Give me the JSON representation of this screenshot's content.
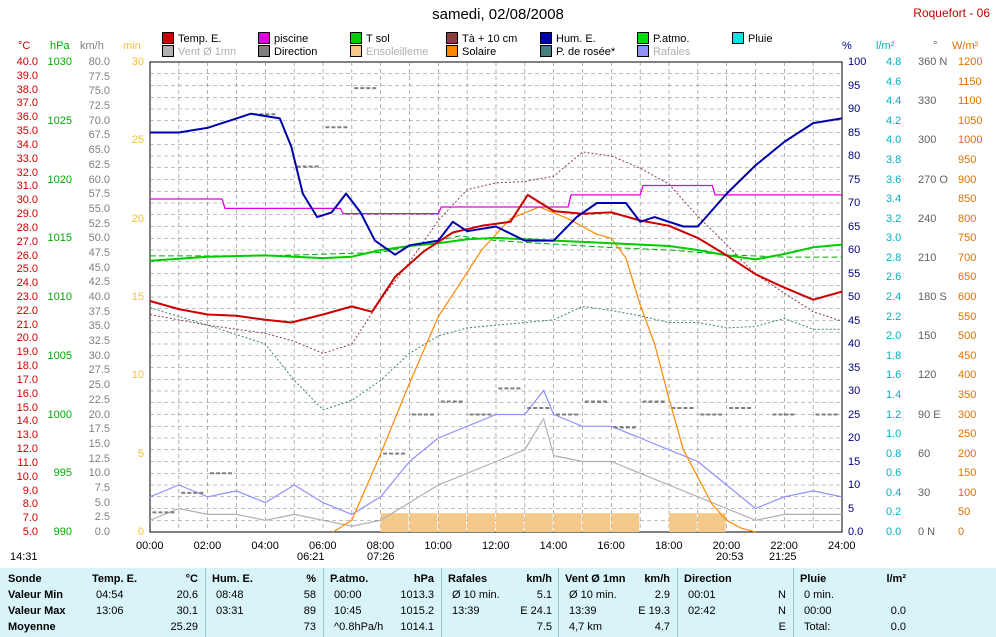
{
  "title": "samedi, 02/08/2008",
  "station": "Roquefort - 06",
  "legend": [
    {
      "label": "Temp. E.",
      "color": "#cc0000",
      "dim": false
    },
    {
      "label": "piscine",
      "color": "#e000e0",
      "dim": false
    },
    {
      "label": "T sol",
      "color": "#00cc00",
      "dim": false
    },
    {
      "label": "Tà + 10 cm",
      "color": "#8b4040",
      "dim": false
    },
    {
      "label": "Hum. E.",
      "color": "#0000aa",
      "dim": false
    },
    {
      "label": "P.atmo.",
      "color": "#00dd00",
      "dim": false
    },
    {
      "label": "Pluie",
      "color": "#00e5e5",
      "dim": false
    },
    {
      "label": "Vent Ø 1mn",
      "color": "#b0b0b0",
      "dim": true
    },
    {
      "label": "Direction",
      "color": "#808080",
      "dim": false
    },
    {
      "label": "Ensoleilleme",
      "color": "#f5c98a",
      "dim": true
    },
    {
      "label": "Solaire",
      "color": "#ff8800",
      "dim": false
    },
    {
      "label": "P. de rosée*",
      "color": "#408080",
      "dim": false
    },
    {
      "label": "Rafales",
      "color": "#9090ff",
      "dim": true
    }
  ],
  "axes": {
    "temp": {
      "unit": "°C",
      "ticks": [
        "40.0",
        "39.0",
        "38.0",
        "37.0",
        "36.0",
        "35.0",
        "34.0",
        "33.0",
        "32.0",
        "31.0",
        "30.0",
        "29.0",
        "28.0",
        "27.0",
        "26.0",
        "25.0",
        "24.0",
        "23.0",
        "22.0",
        "21.0",
        "20.0",
        "19.0",
        "18.0",
        "17.0",
        "16.0",
        "15.0",
        "14.0",
        "13.0",
        "12.0",
        "11.0",
        "10.0",
        "9.0",
        "8.0",
        "7.0",
        "5.0"
      ],
      "color": "#cc0000"
    },
    "press": {
      "unit": "hPa",
      "ticks": [
        "1030",
        "1025",
        "1020",
        "1015",
        "1010",
        "1005",
        "1000",
        "995",
        "990"
      ],
      "color": "#00aa00"
    },
    "wind": {
      "unit": "km/h",
      "ticks": [
        "80.0",
        "77.5",
        "75.0",
        "72.5",
        "70.0",
        "67.5",
        "65.0",
        "62.5",
        "60.0",
        "57.5",
        "55.0",
        "52.5",
        "50.0",
        "47.5",
        "45.0",
        "42.5",
        "40.0",
        "37.5",
        "35.0",
        "32.5",
        "30.0",
        "27.5",
        "25.0",
        "22.5",
        "20.0",
        "17.5",
        "15.0",
        "12.5",
        "10.0",
        "7.5",
        "5.0",
        "2.5",
        "0.0"
      ],
      "color": "#808080"
    },
    "min": {
      "unit": "min",
      "ticks": [
        "30",
        "25",
        "20",
        "15",
        "10",
        "5",
        "0"
      ],
      "color": "#f0c040"
    },
    "hum": {
      "unit": "%",
      "ticks": [
        "100",
        "95",
        "90",
        "85",
        "80",
        "75",
        "70",
        "65",
        "60",
        "55",
        "50",
        "45",
        "40",
        "35",
        "30",
        "25",
        "20",
        "15",
        "10",
        "5",
        "0.0"
      ],
      "color": "#000080"
    },
    "rain": {
      "unit": "l/m²",
      "ticks": [
        "4.8",
        "4.6",
        "4.4",
        "4.2",
        "4.0",
        "3.8",
        "3.6",
        "3.4",
        "3.2",
        "3.0",
        "2.8",
        "2.6",
        "2.4",
        "2.2",
        "2.0",
        "1.8",
        "1.6",
        "1.4",
        "1.2",
        "1.0",
        "0.8",
        "0.6",
        "0.4",
        "0.2",
        "0.0"
      ],
      "color": "#00b0c0"
    },
    "dir": {
      "unit": "°",
      "ticks": [
        "360 N",
        "330",
        "300",
        "270 O",
        "240",
        "210",
        "180 S",
        "150",
        "120",
        "90 E",
        "60",
        "30",
        "0 N"
      ],
      "color": "#606060"
    },
    "solar": {
      "unit": "W/m²",
      "ticks": [
        "1200",
        "1150",
        "1100",
        "1050",
        "1000",
        "950",
        "900",
        "850",
        "800",
        "750",
        "700",
        "650",
        "600",
        "550",
        "500",
        "450",
        "400",
        "350",
        "300",
        "250",
        "200",
        "150",
        "100",
        "50",
        "0"
      ],
      "color": "#e07000"
    }
  },
  "xaxis": {
    "ticks": [
      "00:00",
      "02:00",
      "04:00",
      "06:00",
      "08:00",
      "10:00",
      "12:00",
      "14:00",
      "16:00",
      "18:00",
      "20:00",
      "22:00",
      "24:00"
    ]
  },
  "sun_events": {
    "left": "14:31",
    "sunrise": "06:21",
    "sunrise2": "07:26",
    "sunset": "20:53",
    "sunset2": "21:25"
  },
  "chart_data": {
    "type": "line",
    "x_unit": "hours",
    "series": [
      {
        "name": "Temp. E.",
        "unit": "°C",
        "x": [
          0,
          1,
          2,
          3,
          4,
          4.9,
          6,
          7,
          7.7,
          8.5,
          9.5,
          10.5,
          11.5,
          12.5,
          13.1,
          14,
          15,
          16,
          17,
          18,
          19,
          20,
          21,
          22,
          23,
          24
        ],
        "values": [
          22.2,
          21.6,
          21.2,
          21.1,
          20.8,
          20.6,
          21.2,
          21.8,
          21.4,
          24.0,
          25.9,
          27.3,
          27.8,
          28.1,
          30.1,
          28.9,
          28.7,
          28.8,
          28.2,
          27.8,
          26.9,
          25.6,
          24.2,
          23.2,
          22.3,
          22.9
        ]
      },
      {
        "name": "piscine",
        "unit": "°C",
        "x": [
          0,
          2.5,
          2.6,
          6.6,
          6.7,
          10,
          10.1,
          14.5,
          14.6,
          17,
          17.1,
          19.5,
          19.6,
          24
        ],
        "values": [
          29.8,
          29.8,
          29.1,
          29.1,
          28.7,
          28.7,
          29.2,
          29.2,
          30.1,
          30.1,
          30.8,
          30.8,
          30.1,
          30.1
        ]
      },
      {
        "name": "T sol",
        "unit": "°C",
        "x": [
          0,
          2,
          4,
          6,
          7,
          8,
          9,
          10,
          11,
          12,
          13,
          14,
          15,
          16,
          17,
          18,
          19,
          20,
          21,
          22,
          23,
          24
        ],
        "values": [
          25.2,
          25.5,
          25.6,
          25.4,
          25.5,
          26.0,
          26.3,
          26.5,
          26.8,
          26.9,
          26.8,
          26.7,
          26.6,
          26.5,
          26.4,
          26.3,
          26.0,
          25.6,
          25.3,
          25.7,
          26.2,
          26.4
        ]
      },
      {
        "name": "Tà + 10 cm",
        "unit": "°C",
        "x": [
          0,
          2,
          4,
          5,
          6,
          7,
          8,
          9,
          10,
          11,
          12,
          13,
          14,
          15,
          16,
          17,
          18,
          19,
          20,
          21,
          22,
          23,
          24
        ],
        "values": [
          21.2,
          20.4,
          19.8,
          19.2,
          18.3,
          19.0,
          22.3,
          25.1,
          28.2,
          30.5,
          31.0,
          31.1,
          31.5,
          33.3,
          33.0,
          32.1,
          30.9,
          28.5,
          26.4,
          24.2,
          22.8,
          21.4,
          20.7
        ]
      },
      {
        "name": "P. de rosée*",
        "unit": "°C",
        "x": [
          0,
          2,
          4,
          5,
          6,
          7,
          8,
          9,
          10,
          11,
          12,
          13,
          14,
          15,
          16,
          17,
          18,
          19,
          20,
          21,
          22,
          23,
          24
        ],
        "values": [
          21.7,
          20.4,
          19.0,
          16.3,
          14.1,
          14.8,
          16.3,
          18.3,
          19.6,
          20.2,
          20.4,
          20.6,
          20.8,
          21.8,
          21.5,
          21.1,
          20.6,
          20.6,
          20.2,
          20.3,
          20.9,
          20.1,
          20.1
        ]
      },
      {
        "name": "Hum. E.",
        "unit": "%",
        "x": [
          0,
          1,
          2,
          3,
          3.5,
          4.5,
          4.9,
          5.3,
          5.8,
          6.3,
          6.8,
          7.3,
          7.8,
          8.5,
          9,
          10,
          10.5,
          11,
          12,
          13,
          14,
          14.8,
          15.5,
          16,
          16.5,
          17,
          17.5,
          18,
          18.5,
          19,
          20,
          21,
          22,
          23,
          24
        ],
        "values": [
          85,
          85,
          86,
          88,
          89,
          88,
          82,
          72,
          67,
          68,
          72,
          68,
          62,
          59,
          61,
          62,
          66,
          64,
          65,
          62,
          62,
          67,
          70,
          70,
          70,
          66,
          67,
          66,
          65,
          65,
          72,
          78,
          83,
          87,
          88
        ]
      },
      {
        "name": "Vent Ø 1mn",
        "unit": "km/h",
        "x": [
          0,
          1,
          2,
          3,
          4,
          5,
          6,
          7,
          8,
          9,
          10,
          11,
          12,
          13,
          13.65,
          14,
          15,
          16,
          17,
          18,
          19,
          20,
          21,
          22,
          23,
          24
        ],
        "values": [
          2,
          4,
          3,
          3,
          2,
          3,
          2,
          1,
          2,
          5,
          8,
          10,
          12,
          14,
          19.3,
          13,
          12,
          12,
          10,
          8,
          6,
          4,
          2,
          3,
          3,
          3
        ]
      },
      {
        "name": "Rafales",
        "unit": "km/h",
        "x": [
          0,
          1,
          2,
          3,
          4,
          5,
          6,
          7,
          8,
          9,
          10,
          11,
          12,
          13,
          13.65,
          14,
          15,
          16,
          17,
          18,
          19,
          20,
          21,
          22,
          23,
          24
        ],
        "values": [
          6,
          8,
          6,
          7,
          5,
          8,
          5,
          3,
          6,
          12,
          16,
          18,
          20,
          20,
          24.1,
          20,
          18,
          18,
          16,
          14,
          12,
          8,
          4,
          6,
          7,
          6
        ]
      },
      {
        "name": "Solaire",
        "unit": "W/m²",
        "x": [
          6.35,
          7,
          8,
          9,
          10,
          10.8,
          11.5,
          12.5,
          13.5,
          14.5,
          15,
          15.5,
          16,
          16.5,
          17,
          17.5,
          18,
          18.5,
          19,
          19.5,
          20,
          20.5,
          21
        ],
        "values": [
          0,
          30,
          200,
          380,
          550,
          640,
          720,
          800,
          830,
          800,
          780,
          760,
          750,
          700,
          580,
          480,
          340,
          210,
          140,
          70,
          30,
          10,
          0
        ]
      },
      {
        "name": "P.atmo.",
        "unit": "hPa",
        "x": [
          0,
          4,
          8,
          10.75,
          12,
          14,
          16,
          18,
          20,
          22,
          24
        ],
        "values": [
          1013.5,
          1013.5,
          1013.8,
          1015.2,
          1014.8,
          1014.5,
          1014.2,
          1014.0,
          1013.6,
          1013.4,
          1013.4
        ]
      },
      {
        "name": "Direction",
        "unit": "°",
        "x": [
          0.5,
          1.5,
          2.5,
          4,
          5.5,
          6.5,
          7.5,
          8.5,
          9.5,
          10.5,
          11.5,
          12.5,
          13.5,
          14.5,
          15.5,
          16.5,
          17.5,
          18.5,
          19.5,
          20.5,
          22,
          23.5
        ],
        "values": [
          15,
          30,
          45,
          320,
          280,
          310,
          340,
          60,
          90,
          100,
          90,
          110,
          95,
          90,
          100,
          80,
          100,
          95,
          90,
          95,
          90,
          90
        ]
      },
      {
        "name": "Ensoleilleme",
        "unit": "min",
        "x": [
          8.5,
          9.5,
          10.5,
          11.5,
          12.5,
          13.5,
          14.5,
          15,
          15.5,
          16.5,
          17.5,
          18.5,
          19.5
        ],
        "values": [
          1.2,
          1.2,
          1.2,
          1.2,
          1.2,
          1.2,
          1.2,
          0,
          1.2,
          1.2,
          0,
          1.2,
          1.2
        ]
      }
    ]
  },
  "table": {
    "row_labels": [
      "Sonde",
      "Valeur Min",
      "Valeur Max",
      "Moyenne"
    ],
    "groups": [
      {
        "name": "Temp. E.",
        "unit": "°C",
        "rows": [
          [
            "04:54",
            "20.6"
          ],
          [
            "13:06",
            "30.1"
          ],
          [
            "",
            "25.29"
          ]
        ]
      },
      {
        "name": "Hum. E.",
        "unit": "%",
        "rows": [
          [
            "08:48",
            "58"
          ],
          [
            "03:31",
            "89"
          ],
          [
            "",
            "73"
          ]
        ]
      },
      {
        "name": "P.atmo.",
        "unit": "hPa",
        "rows": [
          [
            "00:00",
            "1013.3"
          ],
          [
            "10:45",
            "1015.2"
          ],
          [
            "^0.8hPa/h",
            "1014.1"
          ]
        ]
      },
      {
        "name": "Rafales",
        "unit": "km/h",
        "rows": [
          [
            "Ø 10 min.",
            "5.1"
          ],
          [
            "13:39",
            "E 24.1"
          ],
          [
            "",
            "7.5"
          ]
        ]
      },
      {
        "name": "Vent Ø 1mn",
        "unit": "km/h",
        "rows": [
          [
            "Ø 10 min.",
            "2.9"
          ],
          [
            "13:39",
            "E 19.3"
          ],
          [
            "4,7 km",
            "4.7"
          ]
        ]
      },
      {
        "name": "Direction",
        "unit": "",
        "rows": [
          [
            "00:01",
            "N"
          ],
          [
            "02:42",
            "N"
          ],
          [
            "",
            "E"
          ]
        ]
      },
      {
        "name": "Pluie",
        "unit": "l/m²",
        "rows": [
          [
            "0 min.",
            ""
          ],
          [
            "00:00",
            "0.0"
          ],
          [
            "Total:",
            "0.0"
          ]
        ]
      }
    ]
  }
}
